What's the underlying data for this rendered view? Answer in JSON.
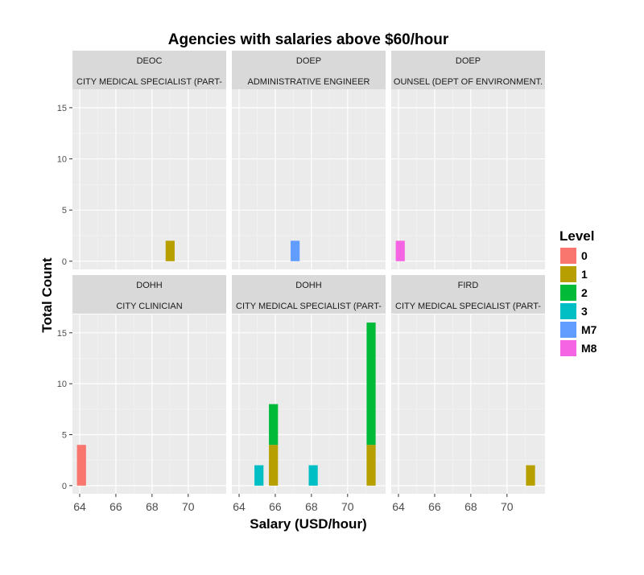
{
  "chart_data": {
    "type": "bar",
    "title": "Agencies with salaries above $60/hour",
    "xlabel": "Salary (USD/hour)",
    "ylabel": "Total Count",
    "xlim": [
      63.6,
      72.1
    ],
    "ylim": [
      -0.8,
      16.8
    ],
    "x_ticks": [
      64,
      66,
      68,
      70
    ],
    "y_ticks": [
      0,
      5,
      10,
      15
    ],
    "bin_width": 0.5,
    "grid": true,
    "legend": {
      "title": "Level",
      "position": "right",
      "entries": [
        {
          "label": "0",
          "color": "#F8766D"
        },
        {
          "label": "1",
          "color": "#B79F00"
        },
        {
          "label": "2",
          "color": "#00BA38"
        },
        {
          "label": "3",
          "color": "#00BFC4"
        },
        {
          "label": "M7",
          "color": "#619CFF"
        },
        {
          "label": "M8",
          "color": "#F564E3"
        }
      ]
    },
    "panels": [
      {
        "agency": "DEOC",
        "job": "CITY MEDICAL SPECIALIST (PART-",
        "bars": [
          {
            "x": 69.0,
            "count": 2,
            "level": "1"
          }
        ]
      },
      {
        "agency": "DOEP",
        "job": "ADMINISTRATIVE ENGINEER",
        "bars": [
          {
            "x": 67.1,
            "count": 2,
            "level": "M7"
          }
        ]
      },
      {
        "agency": "DOEP",
        "job": "OUNSEL (DEPT OF ENVIRONMENT.",
        "bars": [
          {
            "x": 64.1,
            "count": 2,
            "level": "M8"
          }
        ]
      },
      {
        "agency": "DOHH",
        "job": "CITY CLINICIAN",
        "bars": [
          {
            "x": 64.1,
            "count": 4,
            "level": "0"
          }
        ]
      },
      {
        "agency": "DOHH",
        "job": "CITY MEDICAL SPECIALIST (PART-",
        "bars": [
          {
            "x": 65.1,
            "count": 2,
            "level": "3"
          },
          {
            "x": 65.9,
            "count": 4,
            "level": "1"
          },
          {
            "x": 65.9,
            "count": 4,
            "level": "2"
          },
          {
            "x": 68.1,
            "count": 2,
            "level": "3"
          },
          {
            "x": 71.3,
            "count": 4,
            "level": "1"
          },
          {
            "x": 71.3,
            "count": 12,
            "level": "2"
          }
        ]
      },
      {
        "agency": "FIRD",
        "job": "CITY MEDICAL SPECIALIST (PART-",
        "bars": [
          {
            "x": 71.3,
            "count": 2,
            "level": "1"
          }
        ]
      }
    ]
  }
}
